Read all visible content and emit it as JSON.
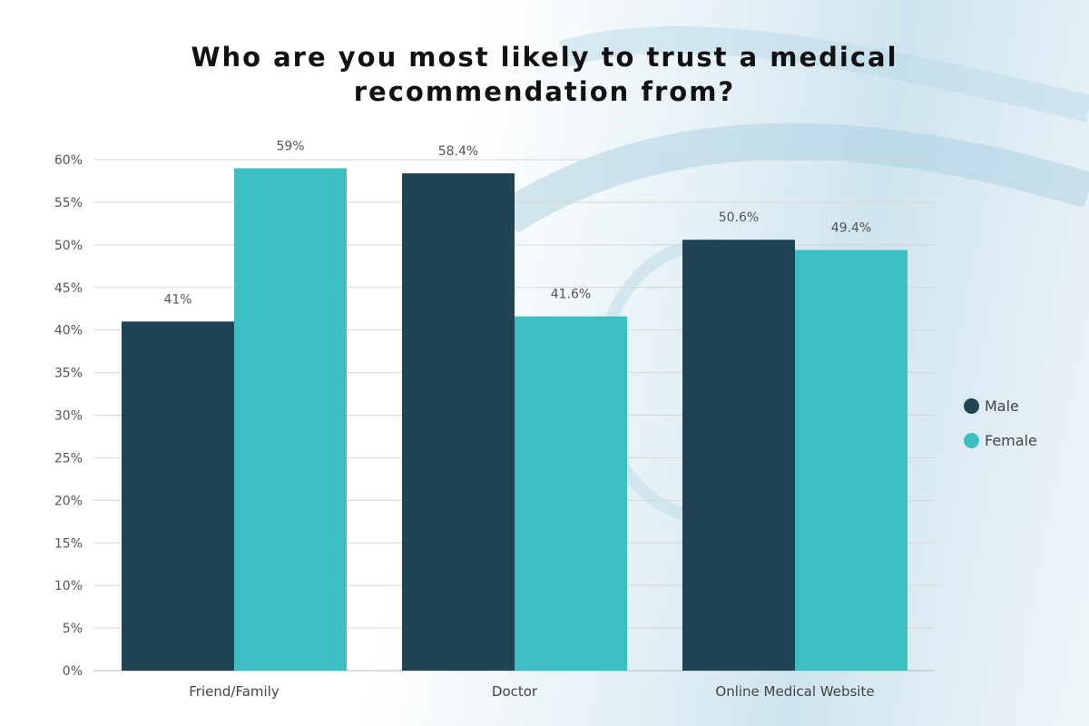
{
  "chart_data": {
    "type": "bar",
    "title": "Who are you most likely to trust a medical recommendation from?",
    "title_lines": [
      "Who are you most likely to trust a medical",
      "recommendation from?"
    ],
    "categories": [
      "Friend/Family",
      "Doctor",
      "Online Medical Website"
    ],
    "series": [
      {
        "name": "Male",
        "values": [
          41,
          58.4,
          50.6
        ],
        "labels": [
          "41%",
          "58.4%",
          "50.6%"
        ],
        "color": "#1f4555"
      },
      {
        "name": "Female",
        "values": [
          59,
          41.6,
          49.4
        ],
        "labels": [
          "59%",
          "41.6%",
          "49.4%"
        ],
        "color": "#3bbfc2"
      }
    ],
    "ylim": [
      0,
      60
    ],
    "yticks": [
      0,
      5,
      10,
      15,
      20,
      25,
      30,
      35,
      40,
      45,
      50,
      55,
      60
    ],
    "ytick_labels": [
      "0%",
      "5%",
      "10%",
      "15%",
      "20%",
      "25%",
      "30%",
      "35%",
      "40%",
      "45%",
      "50%",
      "55%",
      "60%"
    ],
    "xlabel": "",
    "ylabel": "",
    "grid": true,
    "legend_position": "right"
  }
}
